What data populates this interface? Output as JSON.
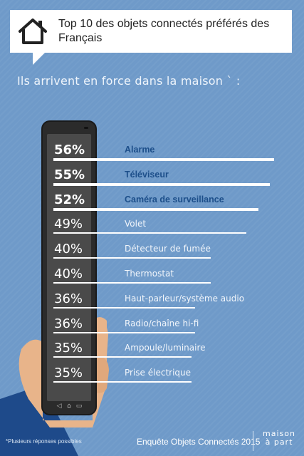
{
  "header": {
    "title": "Top 10 des objets connectés préférés des Français",
    "icon": "house-icon"
  },
  "subtitle": "Ils arrivent en force dans la maison ` :",
  "chart_data": {
    "type": "bar",
    "title": "Top 10 des objets connectés préférés des Français",
    "categories": [
      "Alarme",
      "Téléviseur",
      "Caméra de surveillance",
      "Volet",
      "Détecteur de fumée",
      "Thermostat",
      "Haut-parleur/système audio",
      "Radio/chaîne hi-fi",
      "Ampoule/luminaire",
      "Prise électrique"
    ],
    "values": [
      56,
      55,
      52,
      49,
      40,
      40,
      36,
      36,
      35,
      35
    ],
    "value_labels": [
      "56%",
      "55%",
      "52%",
      "49%",
      "40%",
      "40%",
      "36%",
      "36%",
      "35%",
      "35%"
    ],
    "highlighted": [
      true,
      true,
      true,
      false,
      false,
      false,
      false,
      false,
      false,
      false
    ],
    "unit": "%"
  },
  "footer": {
    "footnote": "*Plusieurs réponses possibles",
    "source": "Enquête Objets Connectés 2015",
    "logo_line1": "maison",
    "logo_line2": "à part"
  },
  "colors": {
    "background": "#6f9ac9",
    "highlight_label": "#1d4f8a",
    "phone": "#2b2b2b",
    "hand": "#e8b48a",
    "sleeve": "#1e4a8a"
  }
}
